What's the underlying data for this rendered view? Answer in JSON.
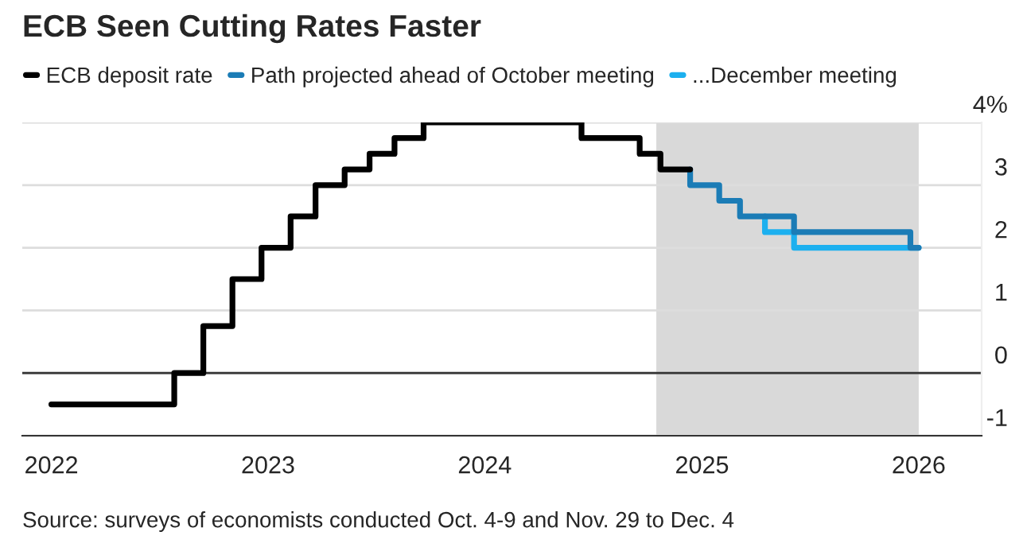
{
  "chart_data": {
    "type": "step",
    "title": "ECB Seen Cutting Rates Faster",
    "series": [
      {
        "name": "ECB deposit rate",
        "color": "#000000",
        "x": [
          "2022-01-01",
          "2022-07-27",
          "2022-09-14",
          "2022-11-02",
          "2022-12-21",
          "2023-02-08",
          "2023-03-22",
          "2023-05-10",
          "2023-06-21",
          "2023-08-02",
          "2023-09-20",
          "2024-06-12",
          "2024-09-18",
          "2024-10-23",
          "2024-12-12"
        ],
        "values": [
          -0.5,
          0,
          0.75,
          1.5,
          2.0,
          2.5,
          3.0,
          3.25,
          3.5,
          3.75,
          4.0,
          3.75,
          3.5,
          3.25,
          3.25
        ]
      },
      {
        "name": "Path projected ahead of October meeting",
        "color": "#1b7cb6",
        "x": [
          "2024-12-12",
          "2024-12-12",
          "2025-01-30",
          "2025-03-06",
          "2025-06-05",
          "2025-12-18",
          "2026-01-01"
        ],
        "values": [
          3.25,
          3.0,
          2.75,
          2.5,
          2.25,
          2.0,
          2.0
        ]
      },
      {
        "name": "...December meeting",
        "color": "#1cb0ef",
        "x": [
          "2025-04-17",
          "2025-04-17",
          "2025-06-05",
          "2026-01-01"
        ],
        "values": [
          2.5,
          2.25,
          2.0,
          2.0
        ]
      }
    ],
    "xlim": [
      "2021-11-13",
      "2026-04-17"
    ],
    "xticks": [
      {
        "value": "2022-01-01",
        "label": "2022"
      },
      {
        "value": "2023-01-01",
        "label": "2023"
      },
      {
        "value": "2024-01-01",
        "label": "2024"
      },
      {
        "value": "2025-01-01",
        "label": "2025"
      },
      {
        "value": "2026-01-01",
        "label": "2026"
      }
    ],
    "ylim": [
      -1,
      4
    ],
    "yticks": [
      -1,
      0,
      1,
      2,
      3,
      {
        "value": 4,
        "label": "4%"
      }
    ],
    "ref_lines": [
      {
        "axis": "y",
        "value": 0,
        "color": "#333333"
      }
    ],
    "bands": [
      {
        "axis": "x",
        "from": "2024-10-16",
        "to": "2026-01-01",
        "color": "#d9d9d9"
      }
    ],
    "grid": "y",
    "legend": "top left",
    "annotations": [
      "Source: surveys of economists conducted Oct. 4-9 and Nov. 29 to Dec. 4"
    ]
  }
}
